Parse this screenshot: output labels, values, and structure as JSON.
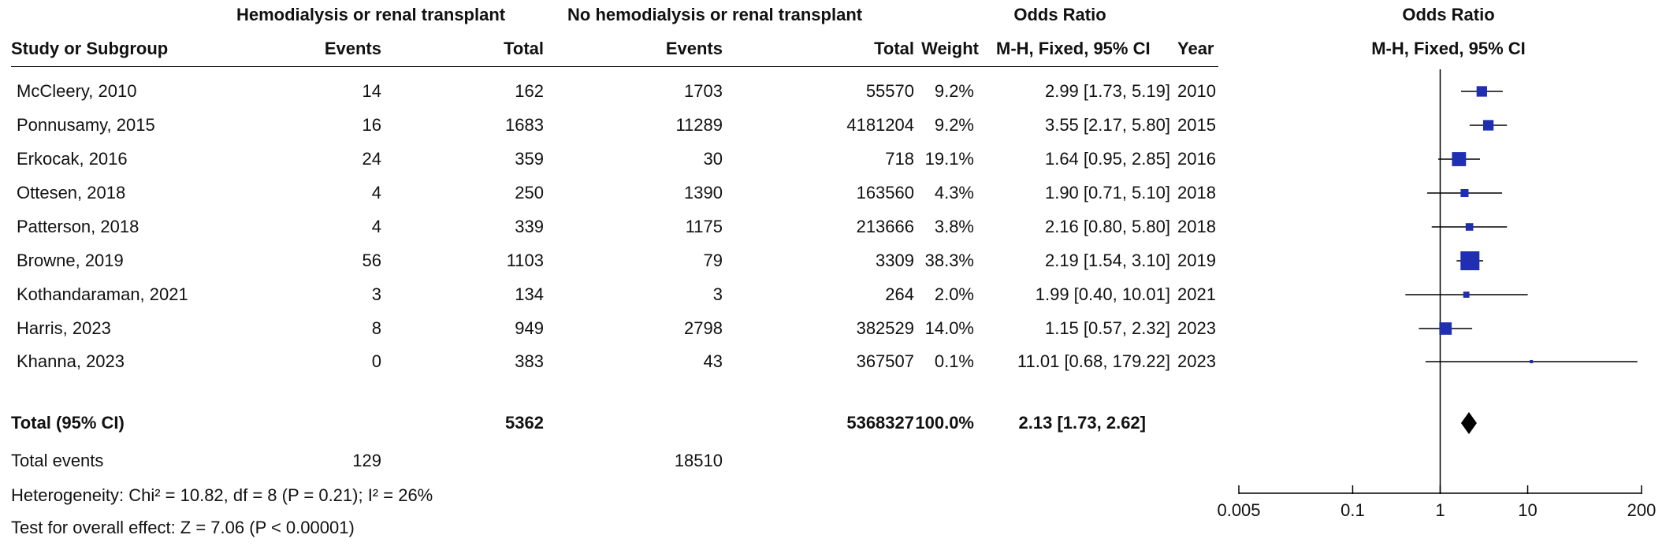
{
  "colors": {
    "point": "#1f2fb0",
    "line": "#000000",
    "diamond": "#000000"
  },
  "header": {
    "group1": "Hemodialysis or renal transplant",
    "group2": "No hemodialysis or renal transplant",
    "or_title": "Odds Ratio",
    "col_study": "Study or Subgroup",
    "col_events1": "Events",
    "col_total1": "Total",
    "col_events2": "Events",
    "col_total2": "Total",
    "col_weight": "Weight",
    "col_or": "M-H, Fixed, 95% CI",
    "col_year": "Year",
    "plot_title": "Odds Ratio",
    "plot_subtitle": "M-H, Fixed, 95% CI"
  },
  "studies": [
    {
      "name": "McCleery, 2010",
      "events1": "14",
      "total1": "162",
      "events2": "1703",
      "total2": "55570",
      "weight": "9.2%",
      "ci_text": "2.99 [1.73, 5.19]",
      "year": "2010"
    },
    {
      "name": "Ponnusamy, 2015",
      "events1": "16",
      "total1": "1683",
      "events2": "11289",
      "total2": "4181204",
      "weight": "9.2%",
      "ci_text": "3.55 [2.17, 5.80]",
      "year": "2015"
    },
    {
      "name": "Erkocak, 2016",
      "events1": "24",
      "total1": "359",
      "events2": "30",
      "total2": "718",
      "weight": "19.1%",
      "ci_text": "1.64 [0.95, 2.85]",
      "year": "2016"
    },
    {
      "name": "Ottesen, 2018",
      "events1": "4",
      "total1": "250",
      "events2": "1390",
      "total2": "163560",
      "weight": "4.3%",
      "ci_text": "1.90 [0.71, 5.10]",
      "year": "2018"
    },
    {
      "name": "Patterson, 2018",
      "events1": "4",
      "total1": "339",
      "events2": "1175",
      "total2": "213666",
      "weight": "3.8%",
      "ci_text": "2.16 [0.80, 5.80]",
      "year": "2018"
    },
    {
      "name": "Browne, 2019",
      "events1": "56",
      "total1": "1103",
      "events2": "79",
      "total2": "3309",
      "weight": "38.3%",
      "ci_text": "2.19 [1.54, 3.10]",
      "year": "2019"
    },
    {
      "name": "Kothandaraman, 2021",
      "events1": "3",
      "total1": "134",
      "events2": "3",
      "total2": "264",
      "weight": "2.0%",
      "ci_text": "1.99 [0.40, 10.01]",
      "year": "2021"
    },
    {
      "name": "Harris, 2023",
      "events1": "8",
      "total1": "949",
      "events2": "2798",
      "total2": "382529",
      "weight": "14.0%",
      "ci_text": "1.15 [0.57, 2.32]",
      "year": "2023"
    },
    {
      "name": "Khanna, 2023",
      "events1": "0",
      "total1": "383",
      "events2": "43",
      "total2": "367507",
      "weight": "0.1%",
      "ci_text": "11.01 [0.68, 179.22]",
      "year": "2023"
    }
  ],
  "total": {
    "label": "Total (95% CI)",
    "total1": "5362",
    "total2": "5368327",
    "weight": "100.0%",
    "ci_text": "2.13 [1.73, 2.62]"
  },
  "total_events": {
    "label": "Total events",
    "events1": "129",
    "events2": "18510"
  },
  "heterogeneity": "Heterogeneity: Chi² = 10.82, df = 8 (P = 0.21); I² = 26%",
  "overall_effect": "Test for overall effect: Z = 7.06 (P < 0.00001)",
  "chart_data": {
    "type": "forest",
    "scale": "log",
    "xlim": [
      0.005,
      200
    ],
    "ticks": [
      0.005,
      0.1,
      1,
      10,
      200
    ],
    "tick_labels": [
      "0.005",
      "0.1",
      "1",
      "10",
      "200"
    ],
    "reference_line": 1,
    "studies": [
      {
        "or": 2.99,
        "lo": 1.73,
        "hi": 5.19,
        "weight": 9.2
      },
      {
        "or": 3.55,
        "lo": 2.17,
        "hi": 5.8,
        "weight": 9.2
      },
      {
        "or": 1.64,
        "lo": 0.95,
        "hi": 2.85,
        "weight": 19.1
      },
      {
        "or": 1.9,
        "lo": 0.71,
        "hi": 5.1,
        "weight": 4.3
      },
      {
        "or": 2.16,
        "lo": 0.8,
        "hi": 5.8,
        "weight": 3.8
      },
      {
        "or": 2.19,
        "lo": 1.54,
        "hi": 3.1,
        "weight": 38.3
      },
      {
        "or": 1.99,
        "lo": 0.4,
        "hi": 10.01,
        "weight": 2.0
      },
      {
        "or": 1.15,
        "lo": 0.57,
        "hi": 2.32,
        "weight": 14.0
      },
      {
        "or": 11.01,
        "lo": 0.68,
        "hi": 179.22,
        "weight": 0.1
      }
    ],
    "pooled": {
      "or": 2.13,
      "lo": 1.73,
      "hi": 2.62
    }
  }
}
